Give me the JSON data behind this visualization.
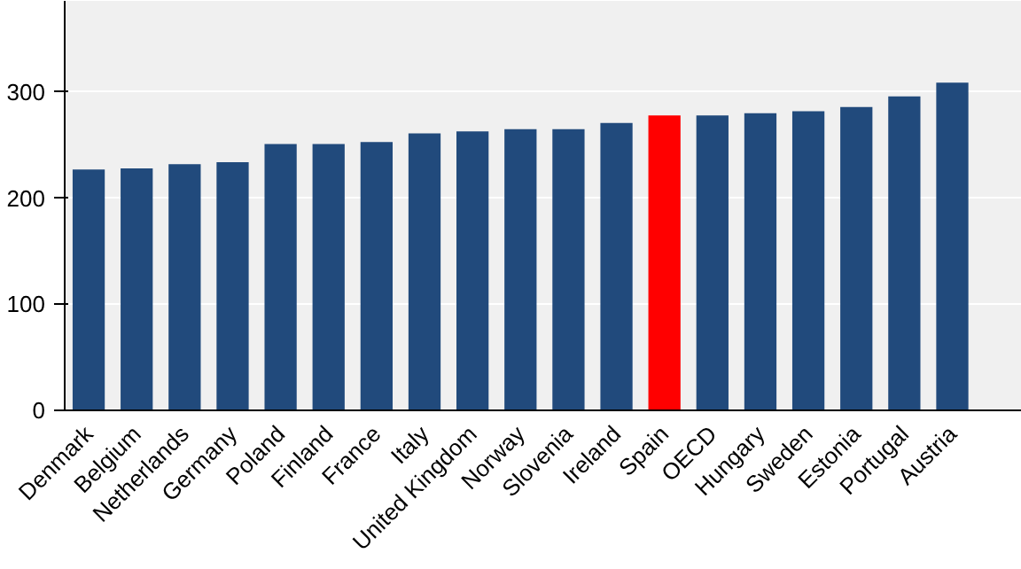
{
  "chart_data": {
    "type": "bar",
    "categories": [
      "Denmark",
      "Belgium",
      "Netherlands",
      "Germany",
      "Poland",
      "Finland",
      "France",
      "Italy",
      "United Kingdom",
      "Norway",
      "Slovenia",
      "Ireland",
      "Spain",
      "OECD",
      "Hungary",
      "Sweden",
      "Estonia",
      "Portugal",
      "Austria"
    ],
    "values": [
      227,
      228,
      232,
      234,
      251,
      251,
      253,
      261,
      263,
      265,
      265,
      271,
      278,
      278,
      280,
      282,
      286,
      296,
      309
    ],
    "colors": [
      "#214a7c",
      "#214a7c",
      "#214a7c",
      "#214a7c",
      "#214a7c",
      "#214a7c",
      "#214a7c",
      "#214a7c",
      "#214a7c",
      "#214a7c",
      "#214a7c",
      "#214a7c",
      "#ff0000",
      "#214a7c",
      "#214a7c",
      "#214a7c",
      "#214a7c",
      "#214a7c",
      "#214a7c"
    ],
    "ylim": [
      0,
      386
    ],
    "yticks": [
      0,
      100,
      200,
      300
    ],
    "grid": "y"
  }
}
